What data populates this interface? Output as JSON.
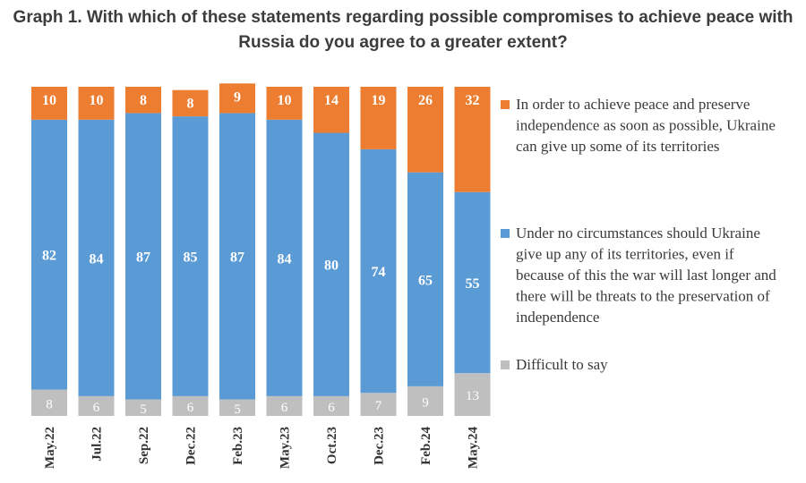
{
  "chart_data": {
    "type": "bar",
    "stacked": true,
    "title": "Graph 1. With which of these statements regarding possible compromises to achieve peace with Russia do you agree to a greater extent?",
    "categories": [
      "May.22",
      "Jul.22",
      "Sep.22",
      "Dec.22",
      "Feb.23",
      "May.23",
      "Oct.23",
      "Dec.23",
      "Feb.24",
      "May.24"
    ],
    "series": [
      {
        "name": "Difficult to say",
        "color": "#bfbfbf",
        "values": [
          8,
          6,
          5,
          6,
          5,
          6,
          6,
          7,
          9,
          13
        ]
      },
      {
        "name": "Under no circumstances should Ukraine give up any of its territories, even if because of this the war will last longer and there will be threats to the preservation of independence",
        "color": "#5b9bd5",
        "values": [
          82,
          84,
          87,
          85,
          87,
          84,
          80,
          74,
          65,
          55
        ]
      },
      {
        "name": "In order to achieve peace and preserve independence as soon as possible, Ukraine can give up some of its territories",
        "color": "#ed7d31",
        "values": [
          10,
          10,
          8,
          8,
          9,
          10,
          14,
          19,
          26,
          32
        ]
      }
    ],
    "ylim": [
      0,
      100
    ],
    "data_labels": true,
    "legend_position": "right",
    "grid": false
  }
}
